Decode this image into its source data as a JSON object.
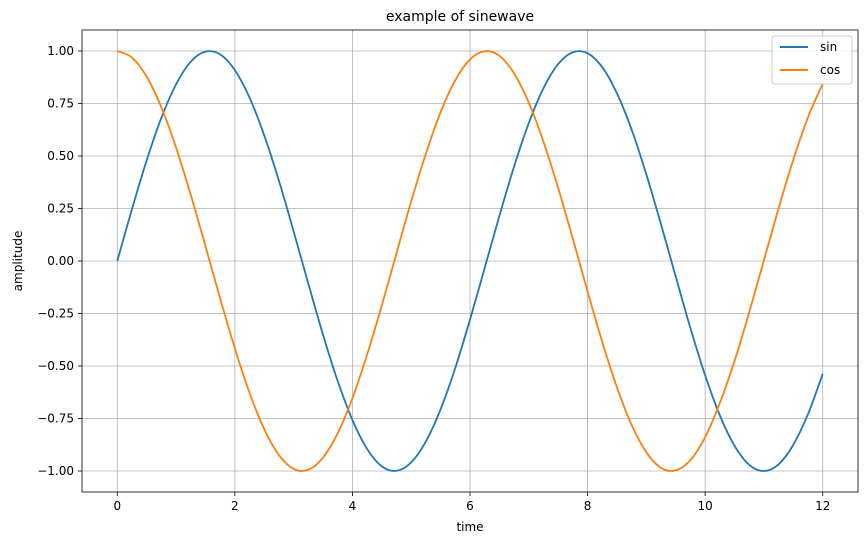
{
  "chart_data": {
    "type": "line",
    "title": "example of sinewave",
    "xlabel": "time",
    "ylabel": "amplitude",
    "xlim": [
      -0.6,
      12.6
    ],
    "ylim": [
      -1.1,
      1.1
    ],
    "xticks": [
      0,
      2,
      4,
      6,
      8,
      10,
      12
    ],
    "xtick_labels": [
      "0",
      "2",
      "4",
      "6",
      "8",
      "10",
      "12"
    ],
    "yticks": [
      1.0,
      0.75,
      0.5,
      0.25,
      0.0,
      -0.25,
      -0.5,
      -0.75,
      -1.0
    ],
    "ytick_labels": [
      "1.00",
      "0.75",
      "0.50",
      "0.25",
      "0.00",
      "−0.25",
      "−0.50",
      "−0.75",
      "−1.00"
    ],
    "grid": true,
    "legend_position": "top-right",
    "series": [
      {
        "name": "sin",
        "color": "#1f77b4",
        "x": [
          0,
          0.25,
          0.5,
          0.75,
          1.0,
          1.25,
          1.5,
          1.75,
          2.0,
          2.25,
          2.5,
          2.75,
          3.0,
          3.25,
          3.5,
          3.75,
          4.0,
          4.25,
          4.5,
          4.75,
          5.0,
          5.25,
          5.5,
          5.75,
          6.0,
          6.25,
          6.5,
          6.75,
          7.0,
          7.25,
          7.5,
          7.75,
          8.0,
          8.25,
          8.5,
          8.75,
          9.0,
          9.25,
          9.5,
          9.75,
          10.0,
          10.25,
          10.5,
          10.75,
          11.0,
          11.25,
          11.5,
          11.75,
          12.0
        ],
        "y": [
          0.0,
          0.247,
          0.479,
          0.682,
          0.841,
          0.949,
          0.997,
          0.984,
          0.909,
          0.778,
          0.598,
          0.382,
          0.141,
          -0.108,
          -0.351,
          -0.572,
          -0.757,
          -0.895,
          -0.978,
          -0.999,
          -0.959,
          -0.859,
          -0.706,
          -0.509,
          -0.279,
          -0.033,
          0.215,
          0.45,
          0.657,
          0.823,
          0.938,
          0.994,
          0.989,
          0.923,
          0.798,
          0.625,
          0.412,
          0.174,
          -0.075,
          -0.32,
          -0.544,
          -0.735,
          -0.88,
          -0.971,
          -1.0,
          -0.968,
          -0.875,
          -0.729,
          -0.537
        ]
      },
      {
        "name": "cos",
        "color": "#ff7f0e",
        "x": [
          0,
          0.25,
          0.5,
          0.75,
          1.0,
          1.25,
          1.5,
          1.75,
          2.0,
          2.25,
          2.5,
          2.75,
          3.0,
          3.25,
          3.5,
          3.75,
          4.0,
          4.25,
          4.5,
          4.75,
          5.0,
          5.25,
          5.5,
          5.75,
          6.0,
          6.25,
          6.5,
          6.75,
          7.0,
          7.25,
          7.5,
          7.75,
          8.0,
          8.25,
          8.5,
          8.75,
          9.0,
          9.25,
          9.5,
          9.75,
          10.0,
          10.25,
          10.5,
          10.75,
          11.0,
          11.25,
          11.5,
          11.75,
          12.0
        ],
        "y": [
          1.0,
          0.969,
          0.878,
          0.732,
          0.54,
          0.315,
          0.071,
          -0.178,
          -0.416,
          -0.628,
          -0.801,
          -0.924,
          -0.99,
          -0.994,
          -0.936,
          -0.82,
          -0.654,
          -0.446,
          -0.211,
          0.037,
          0.284,
          0.512,
          0.709,
          0.861,
          0.96,
          0.999,
          0.977,
          0.893,
          0.754,
          0.568,
          0.347,
          0.105,
          -0.146,
          -0.386,
          -0.602,
          -0.781,
          -0.911,
          -0.985,
          -0.997,
          -0.948,
          -0.839,
          -0.676,
          -0.476,
          -0.244,
          0.004,
          0.252,
          0.483,
          0.685,
          0.844
        ]
      }
    ]
  }
}
